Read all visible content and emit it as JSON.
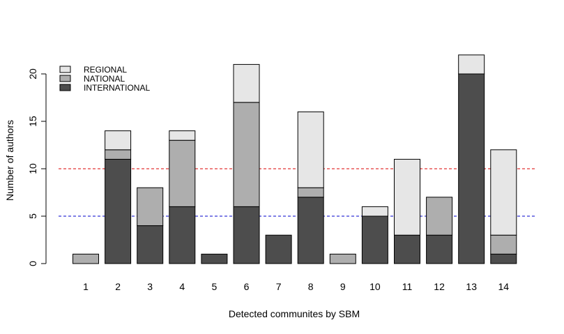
{
  "chart_data": {
    "type": "bar",
    "stacked": true,
    "categories": [
      "1",
      "2",
      "3",
      "4",
      "5",
      "6",
      "7",
      "8",
      "9",
      "10",
      "11",
      "12",
      "13",
      "14"
    ],
    "series": [
      {
        "name": "INTERNATIONAL",
        "color": "#4d4d4d",
        "values": [
          0,
          11,
          4,
          6,
          1,
          6,
          3,
          7,
          0,
          5,
          3,
          3,
          20,
          1
        ]
      },
      {
        "name": "NATIONAL",
        "color": "#aeaeae",
        "values": [
          1,
          1,
          4,
          7,
          0,
          11,
          0,
          1,
          1,
          0,
          0,
          4,
          0,
          2
        ]
      },
      {
        "name": "REGIONAL",
        "color": "#e6e6e6",
        "values": [
          0,
          2,
          0,
          1,
          0,
          4,
          0,
          8,
          0,
          1,
          8,
          0,
          2,
          9
        ]
      }
    ],
    "legend_order": [
      "REGIONAL",
      "NATIONAL",
      "INTERNATIONAL"
    ],
    "legend_position": "top-left",
    "title": "",
    "xlabel": "Detected communites by SBM",
    "ylabel": "Number of authors",
    "yticks": [
      0,
      5,
      10,
      15,
      20
    ],
    "ylim": [
      0,
      22
    ],
    "reference_lines": [
      {
        "y": 10,
        "color": "#dd0000",
        "style": "dashed"
      },
      {
        "y": 5,
        "color": "#0000cc",
        "style": "dashed"
      }
    ]
  }
}
